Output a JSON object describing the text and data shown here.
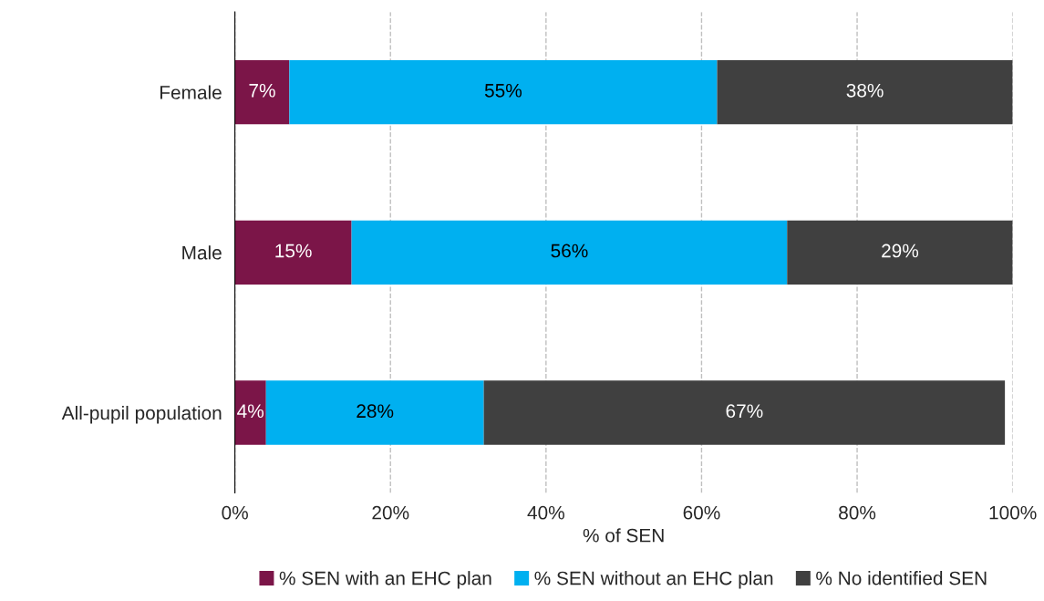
{
  "chart_data": {
    "type": "bar",
    "orientation": "horizontal",
    "stacked": true,
    "xlabel": "% of SEN",
    "categories": [
      "Female",
      "Male",
      "All-pupil population"
    ],
    "series": [
      {
        "name": "% SEN with an EHC plan",
        "color": "#7b1548",
        "values": [
          7,
          15,
          4
        ],
        "value_labels": [
          "7%",
          "15%",
          "4%"
        ]
      },
      {
        "name": "% SEN without an EHC plan",
        "color": "#00b0f0",
        "values": [
          55,
          56,
          28
        ],
        "value_labels": [
          "55%",
          "56%",
          "28%"
        ]
      },
      {
        "name": "% No identified SEN",
        "color": "#404040",
        "values": [
          38,
          29,
          67
        ],
        "value_labels": [
          "38%",
          "29%",
          "67%"
        ]
      }
    ],
    "xlim": [
      0,
      100
    ],
    "xticks": [
      {
        "value": 0,
        "label": "0%"
      },
      {
        "value": 20,
        "label": "20%"
      },
      {
        "value": 40,
        "label": "40%"
      },
      {
        "value": 60,
        "label": "60%"
      },
      {
        "value": 80,
        "label": "80%"
      },
      {
        "value": 100,
        "label": "100%"
      }
    ],
    "grid": "x",
    "legend": "bottom"
  }
}
